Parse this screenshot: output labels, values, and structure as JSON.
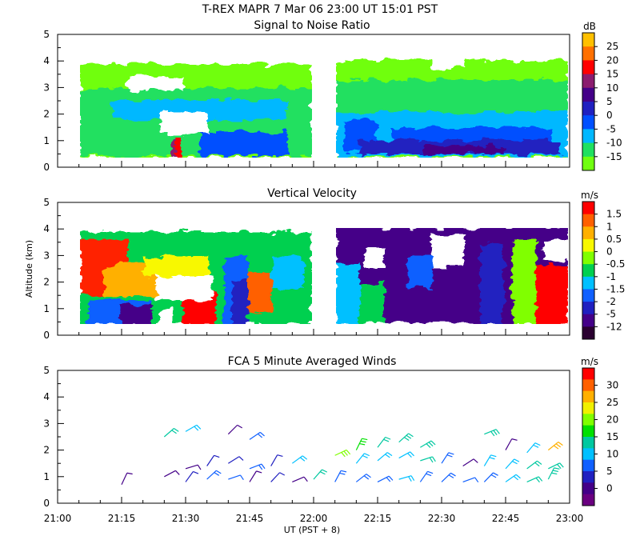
{
  "header": {
    "title": "T-REX   MAPR   7 Mar 06   23:00 UT   15:01   PST"
  },
  "x_axis": {
    "label": "UT  (PST + 8)",
    "tick_labels": [
      "21:00",
      "21:15",
      "21:30",
      "21:45",
      "22:00",
      "22:15",
      "22:30",
      "22:45",
      "23:00"
    ]
  },
  "y_axis": {
    "label": "Altitude (km)"
  },
  "chart_data": [
    {
      "id": "snr",
      "type": "heatmap",
      "title": "Signal to Noise Ratio",
      "ylim": [
        0,
        5
      ],
      "yticks": [
        "0",
        "1",
        "2",
        "3",
        "4",
        "5"
      ],
      "xlim": [
        "21:00",
        "23:00"
      ],
      "data_gaps": [
        [
          "21:00",
          "21:05"
        ],
        [
          "21:54",
          "22:05"
        ],
        [
          "22:58",
          "23:00"
        ]
      ],
      "colorbar": {
        "unit": "dB",
        "tick_labels": [
          "25",
          "20",
          "15",
          "10",
          "5",
          "0",
          "-5",
          "-10",
          "-15"
        ],
        "colors": [
          "#ffc000",
          "#ff7000",
          "#ff0000",
          "#8b1c6e",
          "#440088",
          "#2020c0",
          "#0050ff",
          "#00b8ff",
          "#20e060",
          "#70ff10"
        ]
      }
    },
    {
      "id": "vv",
      "type": "heatmap",
      "title": "Vertical Velocity",
      "ylim": [
        0,
        5
      ],
      "yticks": [
        "0",
        "1",
        "2",
        "3",
        "4",
        "5"
      ],
      "xlim": [
        "21:00",
        "23:00"
      ],
      "data_gaps": [
        [
          "21:00",
          "21:05"
        ],
        [
          "21:54",
          "22:05"
        ],
        [
          "22:58",
          "23:00"
        ]
      ],
      "colorbar": {
        "unit": "m/s",
        "tick_labels": [
          "1.5",
          "1",
          "0.5",
          "0",
          "-0.5",
          "-1",
          "-1.5",
          "-2",
          "-5",
          "-12"
        ],
        "colors": [
          "#ff0000",
          "#ff6000",
          "#ffb000",
          "#f8f800",
          "#80ff00",
          "#00d050",
          "#00c0ff",
          "#1060ff",
          "#2020c0",
          "#440088",
          "#2a0030"
        ]
      }
    },
    {
      "id": "winds",
      "type": "scatter",
      "title": "FCA 5 Minute Averaged Winds",
      "ylim": [
        0,
        5
      ],
      "yticks": [
        "0",
        "1",
        "2",
        "3",
        "4",
        "5"
      ],
      "xlim": [
        "21:00",
        "23:00"
      ],
      "colorbar": {
        "unit": "m/s",
        "tick_labels": [
          "30",
          "25",
          "20",
          "15",
          "10",
          "5",
          "0"
        ],
        "colors": [
          "#ff0000",
          "#ff6000",
          "#ffb000",
          "#f0f000",
          "#80ff00",
          "#00e000",
          "#00c8a0",
          "#00c0ff",
          "#1060ff",
          "#2020c0",
          "#440088",
          "#6a0080"
        ]
      },
      "barbs": [
        {
          "t": "21:15",
          "alt": 0.7,
          "speed": 3
        },
        {
          "t": "21:25",
          "alt": 1.0,
          "speed": 4
        },
        {
          "t": "21:25",
          "alt": 2.5,
          "speed": 13
        },
        {
          "t": "21:30",
          "alt": 0.8,
          "speed": 6
        },
        {
          "t": "21:30",
          "alt": 1.3,
          "speed": 5
        },
        {
          "t": "21:30",
          "alt": 2.7,
          "speed": 11
        },
        {
          "t": "21:35",
          "alt": 0.9,
          "speed": 9
        },
        {
          "t": "21:35",
          "alt": 1.4,
          "speed": 7
        },
        {
          "t": "21:40",
          "alt": 0.9,
          "speed": 8
        },
        {
          "t": "21:40",
          "alt": 1.5,
          "speed": 6
        },
        {
          "t": "21:40",
          "alt": 2.6,
          "speed": 4
        },
        {
          "t": "21:45",
          "alt": 0.8,
          "speed": 5
        },
        {
          "t": "21:45",
          "alt": 1.3,
          "speed": 9
        },
        {
          "t": "21:45",
          "alt": 2.4,
          "speed": 10
        },
        {
          "t": "21:50",
          "alt": 0.8,
          "speed": 6
        },
        {
          "t": "21:50",
          "alt": 1.4,
          "speed": 7
        },
        {
          "t": "21:55",
          "alt": 0.8,
          "speed": 5
        },
        {
          "t": "21:55",
          "alt": 1.5,
          "speed": 12
        },
        {
          "t": "22:00",
          "alt": 0.9,
          "speed": 13
        },
        {
          "t": "22:05",
          "alt": 0.8,
          "speed": 9
        },
        {
          "t": "22:05",
          "alt": 1.8,
          "speed": 20
        },
        {
          "t": "22:10",
          "alt": 0.8,
          "speed": 10
        },
        {
          "t": "22:10",
          "alt": 1.5,
          "speed": 12
        },
        {
          "t": "22:10",
          "alt": 2.0,
          "speed": 16
        },
        {
          "t": "22:15",
          "alt": 0.8,
          "speed": 10
        },
        {
          "t": "22:15",
          "alt": 1.6,
          "speed": 11
        },
        {
          "t": "22:15",
          "alt": 2.1,
          "speed": 14
        },
        {
          "t": "22:20",
          "alt": 0.9,
          "speed": 11
        },
        {
          "t": "22:20",
          "alt": 1.7,
          "speed": 12
        },
        {
          "t": "22:20",
          "alt": 2.3,
          "speed": 15
        },
        {
          "t": "22:25",
          "alt": 0.8,
          "speed": 9
        },
        {
          "t": "22:25",
          "alt": 1.6,
          "speed": 13
        },
        {
          "t": "22:25",
          "alt": 2.1,
          "speed": 15
        },
        {
          "t": "22:30",
          "alt": 0.8,
          "speed": 9
        },
        {
          "t": "22:30",
          "alt": 1.5,
          "speed": 10
        },
        {
          "t": "22:35",
          "alt": 0.8,
          "speed": 8
        },
        {
          "t": "22:35",
          "alt": 1.4,
          "speed": 5
        },
        {
          "t": "22:40",
          "alt": 0.8,
          "speed": 10
        },
        {
          "t": "22:40",
          "alt": 1.4,
          "speed": 12
        },
        {
          "t": "22:40",
          "alt": 2.6,
          "speed": 15
        },
        {
          "t": "22:45",
          "alt": 0.8,
          "speed": 11
        },
        {
          "t": "22:45",
          "alt": 1.3,
          "speed": 12
        },
        {
          "t": "22:45",
          "alt": 2.0,
          "speed": 5
        },
        {
          "t": "22:50",
          "alt": 0.8,
          "speed": 14
        },
        {
          "t": "22:50",
          "alt": 1.3,
          "speed": 13
        },
        {
          "t": "22:50",
          "alt": 1.9,
          "speed": 12
        },
        {
          "t": "22:55",
          "alt": 0.9,
          "speed": 15
        },
        {
          "t": "22:55",
          "alt": 1.3,
          "speed": 13
        },
        {
          "t": "22:55",
          "alt": 2.0,
          "speed": 24
        }
      ]
    }
  ]
}
